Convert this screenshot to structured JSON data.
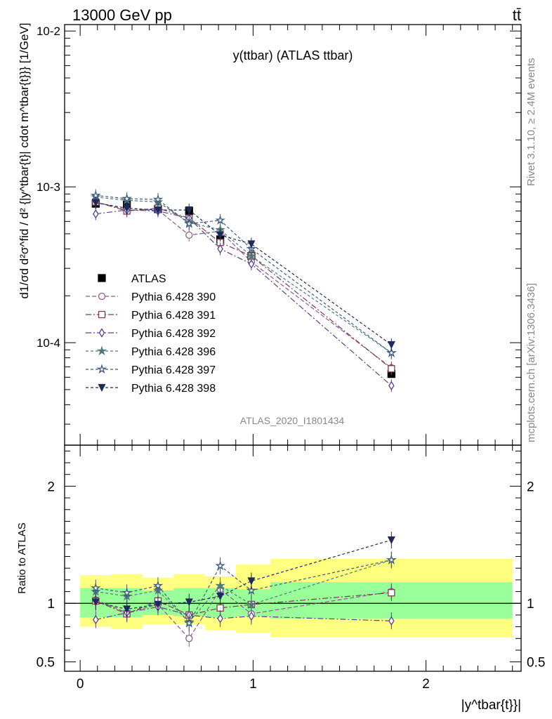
{
  "header": {
    "energy": "13000 GeV pp",
    "process": "tt̄"
  },
  "side": {
    "rivet": "Rivet 3.1.10, ≥ 2.4M events",
    "source": "mcplots.cern.ch [arXiv:1306.3436]"
  },
  "colors": {
    "band_inner": "#99ff99",
    "band_outer": "#ffff80"
  },
  "chart_data": [
    {
      "type": "scatter",
      "title": "y(ttbar) (ATLAS ttbar)",
      "watermark": "ATLAS_2020_I1801434",
      "ylabel": "d1/σd d²σ^fid / d² {|y^tbar{t}| cdot m^tbar{t}}} [1/GeV]",
      "xlabel": "|y^tbar{t}}|",
      "yscale": "log",
      "ylim": [
        2.2e-05,
        0.011
      ],
      "xlim": [
        -0.09,
        2.55
      ],
      "ytick_labels": [
        "10^-4",
        "10^-3",
        "10^-2"
      ],
      "x": [
        0.09,
        0.27,
        0.45,
        0.63,
        0.81,
        0.99,
        1.8
      ],
      "x_bins": [
        [
          0.0,
          0.18
        ],
        [
          0.18,
          0.36
        ],
        [
          0.36,
          0.54
        ],
        [
          0.54,
          0.72
        ],
        [
          0.72,
          0.9
        ],
        [
          0.9,
          1.1
        ],
        [
          1.1,
          2.5
        ]
      ],
      "series": [
        {
          "name": "ATLAS",
          "color": "#000000",
          "marker": "square-filled",
          "dash": "",
          "values": [
            0.00078,
            0.00077,
            0.00072,
            0.0007,
            0.00046,
            0.00036,
            6.3e-05
          ]
        },
        {
          "name": "Pythia 6.428 390",
          "color": "#8c5a8c",
          "marker": "circle-open",
          "dash": "6,3",
          "values": [
            0.0008,
            0.00071,
            0.00071,
            0.00049,
            0.00052,
            0.00033,
            6.9e-05
          ]
        },
        {
          "name": "Pythia 6.428 391",
          "color": "#7a3e4e",
          "marker": "square-open",
          "dash": "8,3,2,3",
          "values": [
            0.0008,
            0.0007,
            0.00073,
            0.00063,
            0.00044,
            0.00036,
            6.8e-05
          ]
        },
        {
          "name": "Pythia 6.428 392",
          "color": "#5a3e8c",
          "marker": "diamond-open",
          "dash": "8,3,2,3",
          "values": [
            0.00067,
            0.00071,
            0.0007,
            0.00063,
            0.0004,
            0.00032,
            5.3e-05
          ]
        },
        {
          "name": "Pythia 6.428 396",
          "color": "#4f7a7a",
          "marker": "star-filled",
          "dash": "4,3",
          "values": [
            0.00086,
            0.00082,
            0.0008,
            0.00059,
            0.00053,
            0.00036,
            8.6e-05
          ]
        },
        {
          "name": "Pythia 6.428 397",
          "color": "#3e5a7a",
          "marker": "star-open",
          "dash": "4,3",
          "values": [
            0.00088,
            0.00084,
            0.00083,
            0.00058,
            0.00061,
            0.0004,
            8.6e-05
          ]
        },
        {
          "name": "Pythia 6.428 398",
          "color": "#1e2a5a",
          "marker": "triangle-down-filled",
          "dash": "4,3",
          "values": [
            0.00079,
            0.00073,
            0.00071,
            0.00071,
            0.00049,
            0.00043,
            9.7e-05
          ]
        }
      ]
    },
    {
      "type": "scatter",
      "ylabel": "Ratio to ATLAS",
      "ylim": [
        0.42,
        2.35
      ],
      "ytick_labels": [
        "0.5",
        "1",
        "2"
      ],
      "xtick_labels": [
        "0",
        "1",
        "2"
      ],
      "band_inner": [
        [
          0.88,
          1.13
        ],
        [
          0.88,
          1.13
        ],
        [
          0.9,
          1.11
        ],
        [
          0.89,
          1.13
        ],
        [
          0.88,
          1.13
        ],
        [
          0.89,
          1.12
        ],
        [
          0.87,
          1.18
        ]
      ],
      "band_outer": [
        [
          0.8,
          1.24
        ],
        [
          0.78,
          1.25
        ],
        [
          0.82,
          1.22
        ],
        [
          0.82,
          1.25
        ],
        [
          0.77,
          1.23
        ],
        [
          0.75,
          1.33
        ],
        [
          0.71,
          1.38
        ]
      ],
      "series": [
        {
          "name": "Pythia 6.428 390",
          "values": [
            1.03,
            0.92,
            0.99,
            0.7,
            1.12,
            0.91,
            1.1
          ]
        },
        {
          "name": "Pythia 6.428 391",
          "values": [
            1.02,
            0.91,
            1.02,
            0.9,
            0.96,
            0.99,
            1.09
          ]
        },
        {
          "name": "Pythia 6.428 392",
          "values": [
            0.86,
            0.92,
            0.97,
            0.9,
            0.87,
            0.89,
            0.85
          ]
        },
        {
          "name": "Pythia 6.428 396",
          "values": [
            1.1,
            1.06,
            1.11,
            0.84,
            1.15,
            0.99,
            1.37
          ]
        },
        {
          "name": "Pythia 6.428 397",
          "values": [
            1.13,
            1.09,
            1.15,
            0.83,
            1.32,
            1.11,
            1.37
          ]
        },
        {
          "name": "Pythia 6.428 398",
          "values": [
            1.01,
            0.95,
            0.99,
            1.01,
            1.06,
            1.19,
            1.54
          ]
        }
      ]
    }
  ]
}
